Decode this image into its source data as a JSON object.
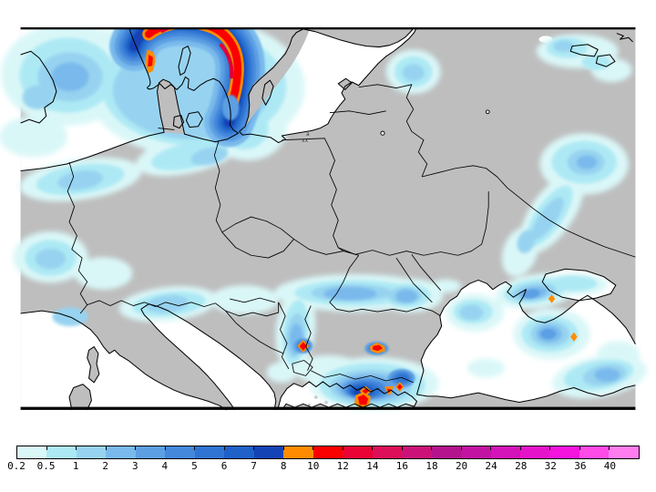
{
  "map": {
    "land_color": "#bebebe",
    "sea_color": "#ffffff",
    "outline_color": "#000000",
    "marker": {
      "top": "a",
      "bottom": "xx"
    }
  },
  "legend": {
    "values": [
      "0.2",
      "0.5",
      "1",
      "2",
      "3",
      "4",
      "5",
      "6",
      "7",
      "8",
      "10",
      "12",
      "14",
      "16",
      "18",
      "20",
      "24",
      "28",
      "32",
      "36",
      "40"
    ],
    "colors": [
      "#daf7f8",
      "#ade9f4",
      "#97d3f0",
      "#79b9ec",
      "#5c9fe3",
      "#4488db",
      "#2f74d2",
      "#1f60c9",
      "#1443b6",
      "#ff8c00",
      "#fa0000",
      "#ea0334",
      "#dc0f58",
      "#cc1278",
      "#b5138d",
      "#c313a3",
      "#d413b8",
      "#e513ca",
      "#f513de",
      "#ff4be8",
      "#ff7df0"
    ]
  }
}
